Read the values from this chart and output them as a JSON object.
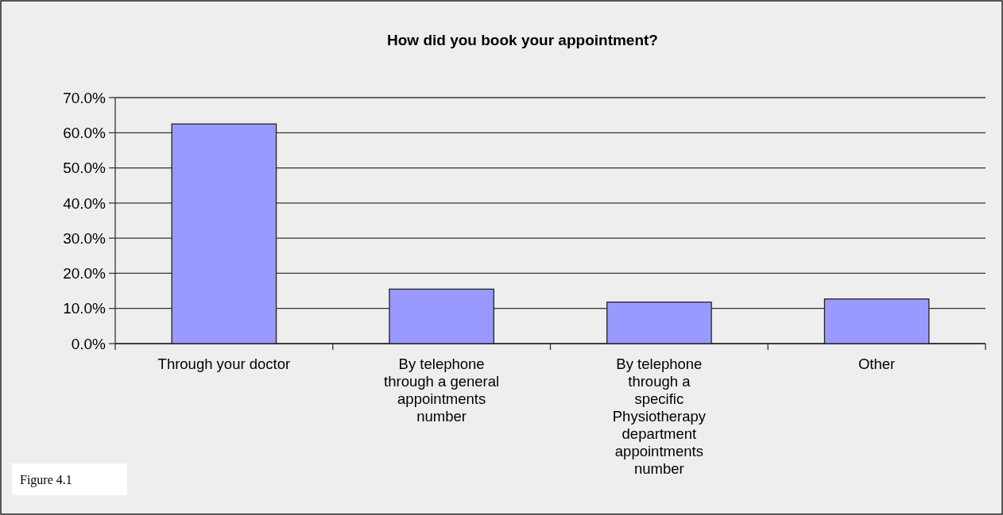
{
  "chart_data": {
    "type": "bar",
    "title": "How did you book your appointment?",
    "categories": [
      "Through your doctor",
      "By telephone through a general appointments number",
      "By telephone through a specific Physiotherapy department appointments number",
      "Other"
    ],
    "values": [
      62.5,
      15.5,
      11.8,
      12.7
    ],
    "color": "#9999ff",
    "ylim": [
      0,
      70
    ],
    "yticks": [
      {
        "value": 0,
        "label": "0.0%"
      },
      {
        "value": 10,
        "label": "10.0%"
      },
      {
        "value": 20,
        "label": "20.0%"
      },
      {
        "value": 30,
        "label": "30.0%"
      },
      {
        "value": 40,
        "label": "40.0%"
      },
      {
        "value": 50,
        "label": "50.0%"
      },
      {
        "value": 60,
        "label": "60.0%"
      },
      {
        "value": 70,
        "label": "70.0%"
      }
    ],
    "grid": "y",
    "annotations": [
      "Figure 4.1"
    ]
  }
}
